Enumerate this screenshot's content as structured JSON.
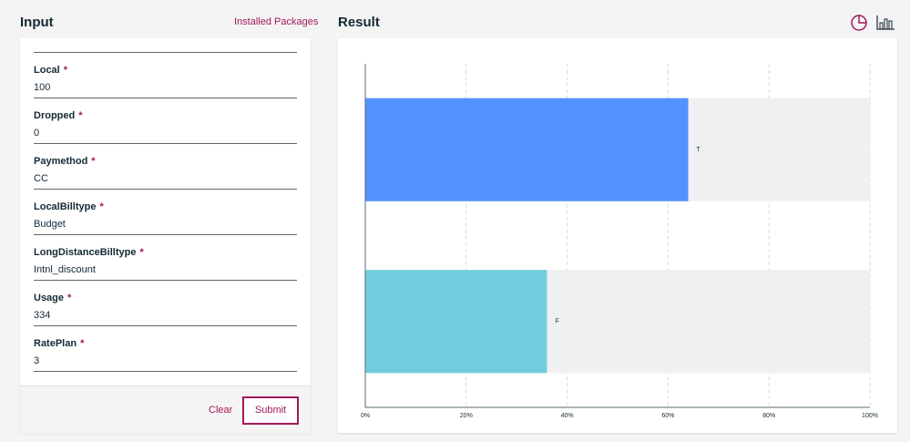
{
  "input": {
    "title": "Input",
    "link": "Installed Packages",
    "fields": [
      {
        "label": "Local",
        "required": "*",
        "value": "100"
      },
      {
        "label": "Dropped",
        "required": "*",
        "value": "0"
      },
      {
        "label": "Paymethod",
        "required": "*",
        "value": "CC"
      },
      {
        "label": "LocalBilltype",
        "required": "*",
        "value": "Budget"
      },
      {
        "label": "LongDistanceBilltype",
        "required": "*",
        "value": "Intnl_discount"
      },
      {
        "label": "Usage",
        "required": "*",
        "value": "334"
      },
      {
        "label": "RatePlan",
        "required": "*",
        "value": "3"
      }
    ],
    "clear": "Clear",
    "submit": "Submit"
  },
  "result": {
    "title": "Result"
  },
  "chart_data": {
    "type": "bar",
    "orientation": "horizontal",
    "categories": [
      "T",
      "F"
    ],
    "values": [
      64,
      36
    ],
    "colors": [
      "#5392ff",
      "#71cddd"
    ],
    "xlim": [
      0,
      100
    ],
    "xticks": [
      {
        "value": 0,
        "label": "0%"
      },
      {
        "value": 20,
        "label": "20%"
      },
      {
        "value": 40,
        "label": "40%"
      },
      {
        "value": 60,
        "label": "60%"
      },
      {
        "value": 80,
        "label": "80%"
      },
      {
        "value": 100,
        "label": "100%"
      }
    ],
    "grid": true
  }
}
